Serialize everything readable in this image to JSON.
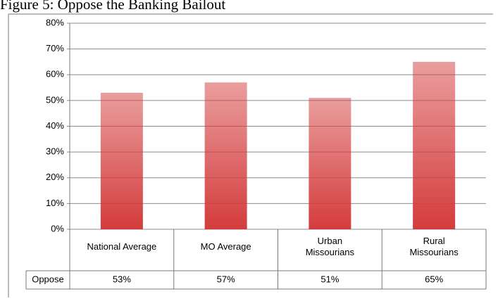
{
  "chart_data": {
    "type": "bar",
    "title": "Figure 5: Oppose the Banking Bailout",
    "categories": [
      "National Average",
      "MO Average",
      "Urban Missourians",
      "Rural Missourians"
    ],
    "series": [
      {
        "name": "Oppose",
        "color": "#d43c3c",
        "values": [
          53,
          57,
          51,
          65
        ],
        "value_labels": [
          "53%",
          "57%",
          "51%",
          "65%"
        ]
      }
    ],
    "ylim": [
      0,
      80
    ],
    "yticks": [
      {
        "value": 0,
        "label": "0%"
      },
      {
        "value": 10,
        "label": "10%"
      },
      {
        "value": 20,
        "label": "20%"
      },
      {
        "value": 30,
        "label": "30%"
      },
      {
        "value": 40,
        "label": "40%"
      },
      {
        "value": 50,
        "label": "50%"
      },
      {
        "value": 60,
        "label": "60%"
      },
      {
        "value": 70,
        "label": "70%"
      },
      {
        "value": 80,
        "label": "80%"
      }
    ],
    "grid": true
  }
}
